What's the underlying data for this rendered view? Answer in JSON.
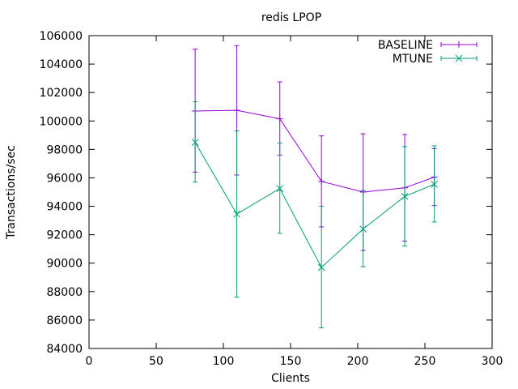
{
  "chart_data": {
    "type": "line",
    "title": "redis LPOP",
    "xlabel": "Clients",
    "ylabel": "Transactions/sec",
    "xlim": [
      0,
      300
    ],
    "ylim": [
      84000,
      106000
    ],
    "xticks": [
      0,
      50,
      100,
      150,
      200,
      250,
      300
    ],
    "yticks": [
      84000,
      86000,
      88000,
      90000,
      92000,
      94000,
      96000,
      98000,
      100000,
      102000,
      104000,
      106000
    ],
    "grid": false,
    "legend_position": "top-right",
    "error_bars": true,
    "series": [
      {
        "name": "BASELINE",
        "color": "#9400d3",
        "marker": "plus",
        "points": [
          {
            "x": 79,
            "y": 100700,
            "ylow": 96400,
            "yhigh": 105050
          },
          {
            "x": 110,
            "y": 100750,
            "ylow": 96200,
            "yhigh": 105300
          },
          {
            "x": 142,
            "y": 100150,
            "ylow": 97600,
            "yhigh": 102750
          },
          {
            "x": 173,
            "y": 95750,
            "ylow": 92550,
            "yhigh": 98950
          },
          {
            "x": 204,
            "y": 95000,
            "ylow": 90900,
            "yhigh": 99100
          },
          {
            "x": 235,
            "y": 95300,
            "ylow": 91550,
            "yhigh": 99050
          },
          {
            "x": 257,
            "y": 96050,
            "ylow": 94050,
            "yhigh": 98050
          }
        ]
      },
      {
        "name": "MTUNE",
        "color": "#009e73",
        "marker": "cross",
        "points": [
          {
            "x": 79,
            "y": 98500,
            "ylow": 95700,
            "yhigh": 101350
          },
          {
            "x": 110,
            "y": 93450,
            "ylow": 87600,
            "yhigh": 99300
          },
          {
            "x": 142,
            "y": 95250,
            "ylow": 92100,
            "yhigh": 98450
          },
          {
            "x": 173,
            "y": 89700,
            "ylow": 85450,
            "yhigh": 94000
          },
          {
            "x": 204,
            "y": 92400,
            "ylow": 89750,
            "yhigh": 95100
          },
          {
            "x": 235,
            "y": 94700,
            "ylow": 91200,
            "yhigh": 98200
          },
          {
            "x": 257,
            "y": 95550,
            "ylow": 92900,
            "yhigh": 98250
          }
        ]
      }
    ]
  }
}
